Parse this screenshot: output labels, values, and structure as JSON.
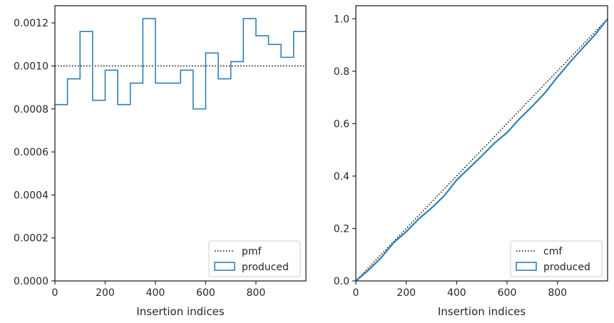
{
  "chart_data": [
    {
      "type": "line",
      "xlabel": "Insertion indices",
      "ylabel": "",
      "xlim": [
        0,
        999
      ],
      "ylim": [
        0,
        0.00128
      ],
      "xticks": [
        0,
        200,
        400,
        600,
        800
      ],
      "yticks": [
        0,
        0.0002,
        0.0004,
        0.0006,
        0.0008,
        0.001,
        0.0012
      ],
      "ytick_labels": [
        "0.0000",
        "0.0002",
        "0.0004",
        "0.0006",
        "0.0008",
        "0.0010",
        "0.0012"
      ],
      "legend_position": "lower-right",
      "series": [
        {
          "name": "pmf",
          "style": "dotted",
          "color": "#000000",
          "x": [
            0,
            999
          ],
          "y": [
            0.001,
            0.001
          ]
        },
        {
          "name": "produced",
          "style": "step",
          "color": "#2f7fb5",
          "bin_edges": [
            0,
            50,
            100,
            150,
            200,
            250,
            300,
            350,
            400,
            450,
            500,
            550,
            600,
            650,
            700,
            750,
            800,
            850,
            900,
            950,
            1000
          ],
          "values": [
            0.00082,
            0.00094,
            0.00116,
            0.00084,
            0.00098,
            0.00082,
            0.00092,
            0.00122,
            0.00092,
            0.00092,
            0.00098,
            0.0008,
            0.00106,
            0.00094,
            0.00102,
            0.00122,
            0.00114,
            0.0011,
            0.00104,
            0.00116
          ]
        }
      ]
    },
    {
      "type": "line",
      "xlabel": "Insertion indices",
      "ylabel": "",
      "xlim": [
        0,
        999
      ],
      "ylim": [
        0,
        1.05
      ],
      "xticks": [
        0,
        200,
        400,
        600,
        800
      ],
      "yticks": [
        0,
        0.2,
        0.4,
        0.6,
        0.8,
        1.0
      ],
      "ytick_labels": [
        "0.0",
        "0.2",
        "0.4",
        "0.6",
        "0.8",
        "1.0"
      ],
      "legend_position": "lower-right",
      "series": [
        {
          "name": "cmf",
          "style": "dotted",
          "color": "#000000",
          "x": [
            0,
            999
          ],
          "y": [
            0,
            1.0
          ]
        },
        {
          "name": "produced",
          "style": "solid",
          "color": "#2f7fb5",
          "x": [
            0,
            50,
            100,
            150,
            200,
            250,
            300,
            350,
            400,
            450,
            500,
            550,
            600,
            650,
            700,
            750,
            800,
            850,
            900,
            950,
            999
          ],
          "y": [
            0,
            0.041,
            0.088,
            0.146,
            0.188,
            0.237,
            0.278,
            0.324,
            0.385,
            0.431,
            0.477,
            0.526,
            0.566,
            0.619,
            0.666,
            0.717,
            0.778,
            0.835,
            0.888,
            0.94,
            1.0
          ]
        }
      ]
    }
  ]
}
